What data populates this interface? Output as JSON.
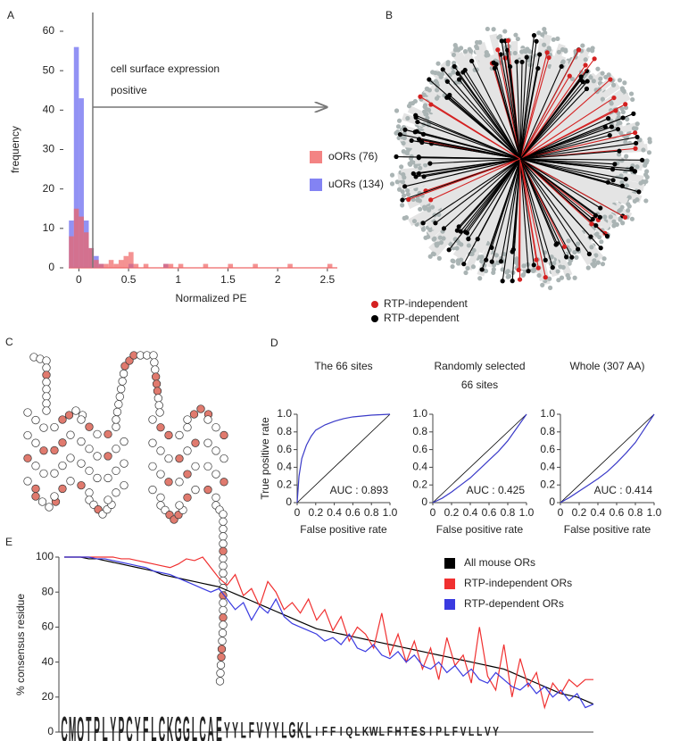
{
  "chart_data": [
    {
      "type": "histogram",
      "label": "A",
      "xlabel": "Normalized PE",
      "ylabel": "frequency",
      "annotation": [
        "cell surface expression",
        "positive"
      ],
      "vline": 0.14,
      "xlim": [
        -0.12,
        2.6
      ],
      "ylim": [
        0,
        60
      ],
      "xticks": [
        0,
        0.5,
        1,
        1.5,
        2,
        2.5
      ],
      "yticks": [
        0,
        10,
        20,
        30,
        40,
        50,
        60
      ],
      "bins": [
        -0.1,
        -0.05,
        0,
        0.05,
        0.1,
        0.15,
        0.2,
        0.25,
        0.3,
        0.35,
        0.4,
        0.45,
        0.5,
        0.55,
        0.6,
        0.65,
        0.7,
        0.75,
        0.8,
        0.85,
        0.9,
        0.95,
        1,
        1.05,
        1.1,
        1.15,
        1.2,
        1.25,
        1.3,
        1.35,
        1.4,
        1.45,
        1.5,
        1.55,
        1.6,
        1.65,
        1.7,
        1.75,
        1.8,
        1.85,
        1.9,
        1.95,
        2,
        2.05,
        2.1,
        2.15,
        2.2,
        2.25,
        2.3,
        2.35,
        2.4,
        2.45,
        2.5,
        2.55
      ],
      "series": [
        {
          "name": "uORs (134)",
          "color": "#6464f0",
          "values": [
            12,
            56,
            43,
            12,
            5,
            3,
            1,
            0,
            0,
            0,
            0,
            0,
            1,
            0,
            0,
            0,
            0,
            0,
            0,
            1,
            0,
            0,
            0,
            0,
            0,
            0,
            0,
            0,
            0,
            0,
            0,
            0,
            0,
            0,
            0,
            0,
            0,
            0,
            0,
            0,
            0,
            0,
            0,
            0,
            0,
            0,
            0,
            0,
            0,
            0,
            0,
            0,
            0
          ]
        },
        {
          "name": "oORs (76)",
          "color": "#f06464",
          "values": [
            8,
            15,
            13,
            9,
            5,
            2,
            1,
            1,
            2,
            1,
            2,
            3,
            4,
            1,
            0,
            1,
            0,
            0,
            0,
            1,
            1,
            0,
            1,
            0,
            0,
            0,
            0,
            1,
            0,
            0,
            0,
            0,
            1,
            0,
            0,
            0,
            0,
            1,
            0,
            0,
            0,
            0,
            0,
            0,
            1,
            0,
            0,
            0,
            0,
            0,
            0,
            0,
            1
          ]
        }
      ]
    },
    {
      "type": "tree",
      "label": "B",
      "series": [
        {
          "name": "RTP-independent",
          "color": "#d42020"
        },
        {
          "name": "RTP-dependent",
          "color": "#000000"
        }
      ]
    },
    {
      "type": "diagram",
      "label": "C"
    },
    {
      "type": "line",
      "label": "D",
      "title": [
        "The 66 sites"
      ],
      "annotation": "AUC : 0.893",
      "xlabel": "False positive rate",
      "ylabel": "True positive rate",
      "diagonal": true,
      "xlim": [
        0,
        1
      ],
      "ylim": [
        0,
        1
      ],
      "xticks": [
        0,
        0.2,
        0.4,
        0.6,
        0.8,
        {
          "value": 1,
          "label": "1.0"
        }
      ],
      "yticks": [
        0,
        0.2,
        0.4,
        0.6,
        0.8,
        {
          "value": 1,
          "label": "1.0"
        }
      ],
      "series": [
        {
          "color": "#3a3ac8",
          "x": [
            0,
            0.02,
            0.05,
            0.1,
            0.15,
            0.2,
            0.3,
            0.4,
            0.5,
            0.6,
            0.8,
            1
          ],
          "values": [
            0,
            0.3,
            0.5,
            0.65,
            0.75,
            0.82,
            0.88,
            0.92,
            0.95,
            0.97,
            0.99,
            1
          ]
        }
      ]
    },
    {
      "type": "line",
      "title": [
        "Randomly selected",
        "66 sites"
      ],
      "annotation": "AUC : 0.425",
      "xlabel": "False positive rate",
      "diagonal": true,
      "xlim": [
        0,
        1
      ],
      "ylim": [
        0,
        1
      ],
      "xticks": [
        0,
        0.2,
        0.4,
        0.6,
        0.8,
        {
          "value": 1,
          "label": "1.0"
        }
      ],
      "yticks": [
        0,
        0.2,
        0.4,
        0.6,
        0.8,
        {
          "value": 1,
          "label": "1.0"
        }
      ],
      "series": [
        {
          "color": "#3a3ac8",
          "x": [
            0,
            0.1,
            0.2,
            0.3,
            0.4,
            0.5,
            0.6,
            0.7,
            0.8,
            0.9,
            1
          ],
          "values": [
            0,
            0.05,
            0.12,
            0.2,
            0.28,
            0.38,
            0.48,
            0.58,
            0.7,
            0.85,
            1
          ]
        }
      ]
    },
    {
      "type": "line",
      "title": [
        "Whole (307 AA)"
      ],
      "annotation": "AUC : 0.414",
      "xlabel": "False positive rate",
      "diagonal": true,
      "xlim": [
        0,
        1
      ],
      "ylim": [
        0,
        1
      ],
      "xticks": [
        0,
        0.2,
        0.4,
        0.6,
        0.8,
        {
          "value": 1,
          "label": "1.0"
        }
      ],
      "yticks": [
        0,
        0.2,
        0.4,
        0.6,
        0.8,
        {
          "value": 1,
          "label": "1.0"
        }
      ],
      "series": [
        {
          "color": "#3a3ac8",
          "x": [
            0,
            0.1,
            0.2,
            0.3,
            0.4,
            0.5,
            0.6,
            0.7,
            0.8,
            0.9,
            1
          ],
          "values": [
            0,
            0.06,
            0.13,
            0.2,
            0.27,
            0.35,
            0.45,
            0.56,
            0.68,
            0.84,
            1
          ]
        }
      ]
    },
    {
      "type": "line",
      "label": "E",
      "ylabel": "% consensus residue",
      "legend": true,
      "xlim": [
        1,
        66
      ],
      "ylim": [
        0,
        100
      ],
      "yticks": [
        0,
        20,
        40,
        60,
        80,
        100
      ],
      "x": [
        1,
        2,
        3,
        4,
        5,
        6,
        7,
        8,
        9,
        10,
        11,
        12,
        13,
        14,
        15,
        16,
        17,
        18,
        19,
        20,
        21,
        22,
        23,
        24,
        25,
        26,
        27,
        28,
        29,
        30,
        31,
        32,
        33,
        34,
        35,
        36,
        37,
        38,
        39,
        40,
        41,
        42,
        43,
        44,
        45,
        46,
        47,
        48,
        49,
        50,
        51,
        52,
        53,
        54,
        55,
        56,
        57,
        58,
        59,
        60,
        61,
        62,
        63,
        64,
        65,
        66
      ],
      "series": [
        {
          "name": "All mouse ORs",
          "color": "#000000",
          "values": [
            100,
            100,
            100,
            99,
            99,
            98,
            97,
            96,
            95,
            94,
            93,
            92,
            90,
            89,
            88,
            87,
            86,
            85,
            84,
            83,
            81,
            79,
            77,
            75,
            73,
            71,
            69,
            67,
            65,
            63,
            61,
            59,
            58,
            57,
            56,
            55,
            54,
            53,
            52,
            51,
            50,
            49,
            48,
            47,
            46,
            45,
            44,
            43,
            42,
            41,
            40,
            39,
            38,
            37,
            36,
            34,
            32,
            30,
            28,
            26,
            24,
            22,
            21,
            20,
            18,
            16
          ]
        },
        {
          "name": "RTP-independent ORs",
          "color": "#f03030",
          "values": [
            100,
            100,
            100,
            100,
            100,
            100,
            100,
            99,
            99,
            98,
            97,
            96,
            95,
            94,
            96,
            99,
            98,
            100,
            94,
            88,
            84,
            90,
            78,
            82,
            72,
            86,
            80,
            70,
            74,
            68,
            76,
            64,
            70,
            58,
            66,
            52,
            60,
            56,
            48,
            68,
            44,
            56,
            40,
            52,
            36,
            48,
            30,
            54,
            38,
            44,
            28,
            60,
            32,
            24,
            50,
            20,
            42,
            26,
            34,
            14,
            28,
            22,
            30,
            26,
            30,
            30
          ]
        },
        {
          "name": "RTP-dependent ORs",
          "color": "#3a3ae0",
          "values": [
            100,
            100,
            100,
            100,
            99,
            99,
            98,
            97,
            96,
            95,
            94,
            92,
            91,
            90,
            88,
            86,
            84,
            82,
            80,
            82,
            76,
            70,
            74,
            64,
            72,
            68,
            76,
            66,
            62,
            60,
            58,
            56,
            52,
            54,
            50,
            56,
            48,
            46,
            50,
            44,
            42,
            46,
            40,
            44,
            38,
            36,
            40,
            34,
            38,
            32,
            36,
            30,
            28,
            34,
            30,
            26,
            24,
            28,
            22,
            26,
            20,
            24,
            18,
            22,
            14,
            16
          ]
        }
      ],
      "logo": [
        "C",
        "M",
        "Q",
        "T",
        "P",
        "L",
        "Y",
        "P",
        "C",
        "Y",
        "F",
        "L",
        "C",
        "K",
        "G",
        "G",
        "L",
        "C",
        "A",
        "E",
        "Y",
        "Y",
        "L",
        "F",
        "V",
        "Y",
        "Y",
        "L",
        "G",
        "K",
        "L",
        "I",
        "F",
        "F",
        "I",
        "Q",
        "L",
        "K",
        "W",
        "L",
        "F",
        "H",
        "T",
        "E",
        "S",
        "I",
        "P",
        "L",
        "F",
        "V",
        "L",
        "L",
        "V",
        "Y"
      ],
      "logo_colors": {
        "C": "#22bb22",
        "G": "#22bb22",
        "S": "#22bb22",
        "T": "#22bb22",
        "Y": "#22bb22",
        "Q": "#bb22bb",
        "N": "#bb22bb",
        "K": "#2222cc",
        "R": "#2222cc",
        "H": "#2222cc",
        "D": "#dd2222",
        "E": "#dd2222",
        "A": "#000000",
        "V": "#000000",
        "L": "#000000",
        "I": "#000000",
        "P": "#000000",
        "W": "#000000",
        "F": "#000000",
        "M": "#000000"
      }
    }
  ]
}
